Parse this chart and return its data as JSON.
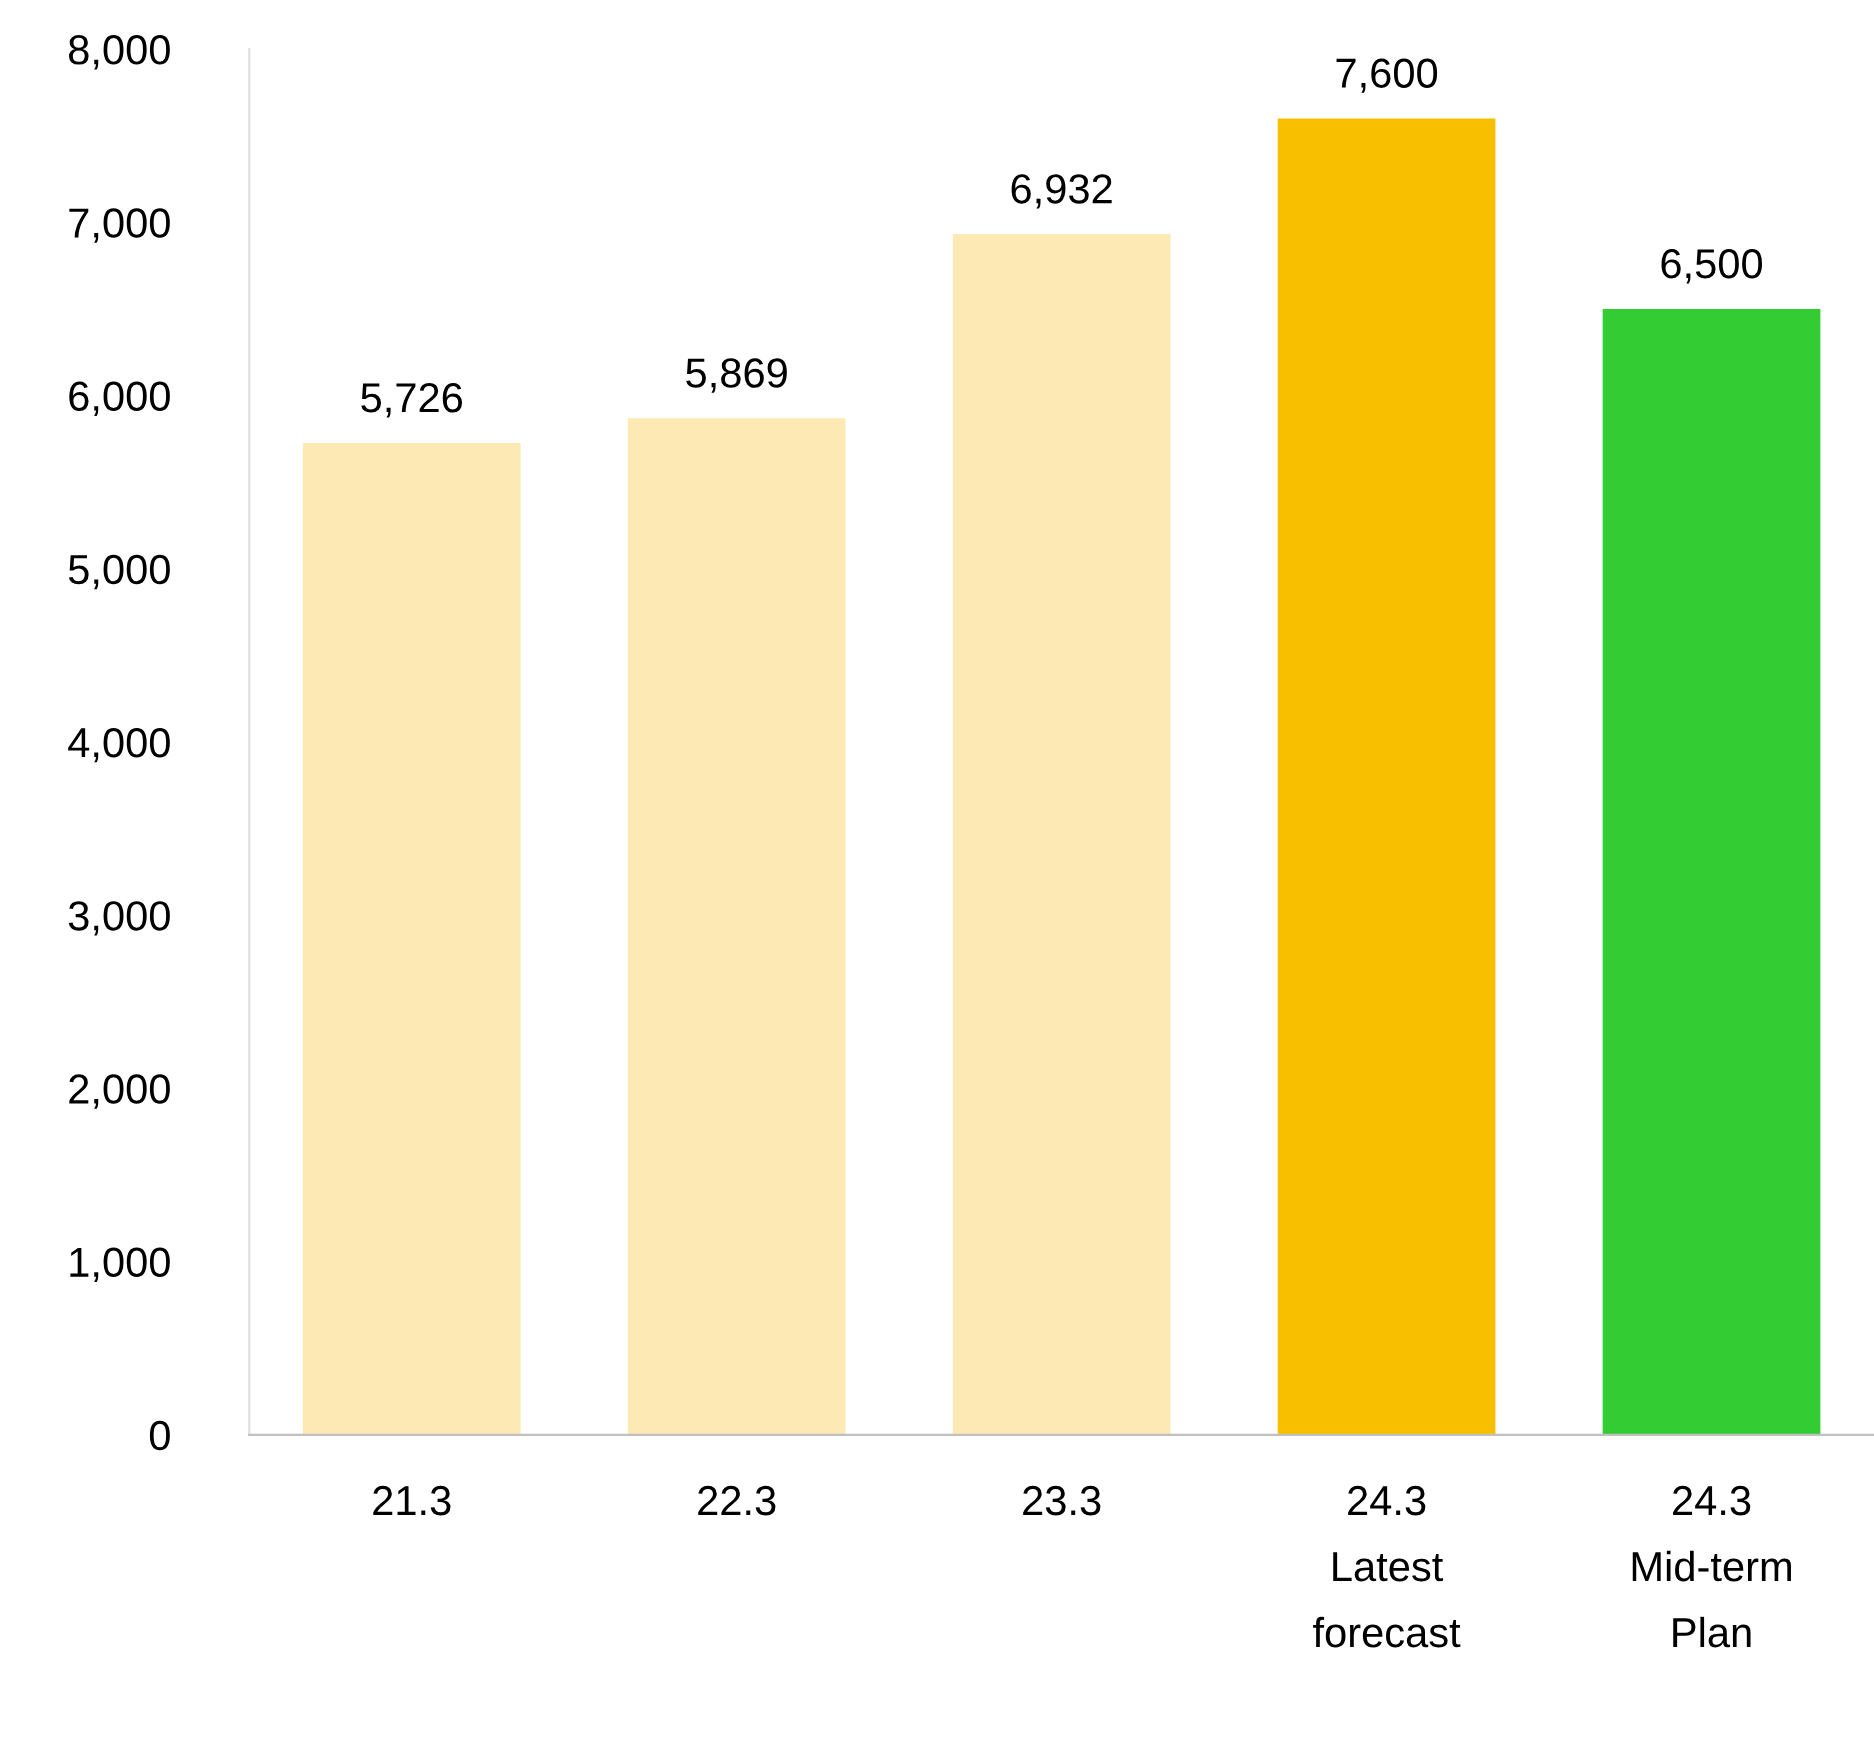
{
  "chart_data": {
    "type": "bar",
    "categories": [
      "21.3",
      "22.3",
      "23.3",
      "24.3\nLatest\nforecast",
      "24.3\nMid-term\nPlan"
    ],
    "values": [
      5726,
      5869,
      6932,
      7600,
      6500
    ],
    "colors": [
      "#fce9b4",
      "#fce9b4",
      "#fce9b4",
      "#f8be00",
      "#33cc33"
    ],
    "value_labels": [
      "5,726",
      "5,869",
      "6,932",
      "7,600",
      "6,500"
    ],
    "ylim": [
      0,
      8000
    ],
    "yticks": [
      {
        "value": 0,
        "label": "0"
      },
      {
        "value": 1000,
        "label": "1,000"
      },
      {
        "value": 2000,
        "label": "2,000"
      },
      {
        "value": 3000,
        "label": "3,000"
      },
      {
        "value": 4000,
        "label": "4,000"
      },
      {
        "value": 5000,
        "label": "5,000"
      },
      {
        "value": 6000,
        "label": "6,000"
      },
      {
        "value": 7000,
        "label": "7,000"
      },
      {
        "value": 8000,
        "label": "8,000"
      }
    ],
    "grid": false
  }
}
